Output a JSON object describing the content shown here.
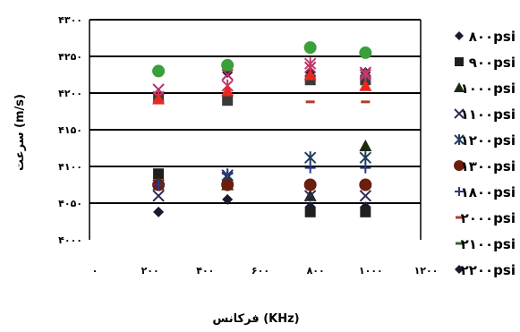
{
  "chart_data": {
    "type": "scatter",
    "xlabel": "فرکانس (KHz)",
    "ylabel": "سرعت (m/s)",
    "xlim": [
      0,
      1200
    ],
    "ylim": [
      4000,
      4300
    ],
    "x_ticks": [
      "۰",
      "۲۰۰",
      "۴۰۰",
      "۶۰۰",
      "۸۰۰",
      "۱۰۰۰",
      "۱۲۰۰"
    ],
    "y_ticks": [
      "۴۰۰۰",
      "۴۰۵۰",
      "۴۱۰۰",
      "۴۱۵۰",
      "۴۲۰۰",
      "۴۲۵۰",
      "۴۳۰۰"
    ],
    "grid": "horizontal",
    "legend_position": "right",
    "series": [
      {
        "name": "۸۰۰psi",
        "marker": "diamond",
        "color": "#1a1a2e",
        "x": [
          250,
          500,
          800,
          1000
        ],
        "y": [
          4038,
          4055,
          4045,
          4045
        ]
      },
      {
        "name": "۹۰۰psi",
        "marker": "square",
        "color": "#1f1f1f",
        "x": [
          250,
          500,
          800,
          1000
        ],
        "y": [
          4090,
          4075,
          4038,
          4038
        ]
      },
      {
        "name": "۱۰۰۰psi",
        "marker": "triangle",
        "color": "#1c2a12",
        "x": [
          250,
          500,
          800,
          1000
        ],
        "y": [
          4080,
          4075,
          4060,
          4128
        ]
      },
      {
        "name": "۱۱۰۰psi",
        "marker": "x",
        "color": "#2b2b55",
        "x": [
          250,
          500,
          800,
          1000
        ],
        "y": [
          4060,
          4085,
          4060,
          4060
        ]
      },
      {
        "name": "۱۲۰۰psi",
        "marker": "asterisk",
        "color": "#1e3d5c",
        "x": [
          250,
          500,
          800,
          1000
        ],
        "y": [
          4075,
          4088,
          4112,
          4112
        ]
      },
      {
        "name": "۱۳۰۰psi",
        "marker": "circle",
        "color": "#6b1e0c",
        "x": [
          250,
          500,
          800,
          1000
        ],
        "y": [
          4075,
          4075,
          4075,
          4075
        ]
      },
      {
        "name": "۱۸۰۰psi",
        "marker": "plus",
        "color": "#2a3a8a",
        "x": [
          250,
          500,
          800,
          1000
        ],
        "y": [
          4075,
          4090,
          4098,
          4098
        ]
      },
      {
        "name": "۲۰۰۰psi",
        "marker": "dash",
        "color": "#b33a2b",
        "x": [
          250,
          500,
          800,
          1000
        ],
        "y": [
          4195,
          4195,
          4188,
          4188
        ]
      },
      {
        "name": "۲۱۰۰psi",
        "marker": "dash",
        "color": "#2f6b1e",
        "x": [
          250,
          500,
          800,
          1000
        ],
        "y": [
          4195,
          4195,
          4220,
          4215
        ]
      },
      {
        "name": "۲۲۰۰psi",
        "marker": "diamond",
        "color": "#1a1a2e",
        "x": [
          250,
          500,
          800,
          1000
        ],
        "y": [
          4195,
          4228,
          4228,
          4228
        ]
      },
      {
        "name": "",
        "marker": "square",
        "color": "#3a3a3a",
        "x": [
          250,
          500,
          800,
          1000
        ],
        "y": [
          4192,
          4190,
          4218,
          4218
        ]
      },
      {
        "name": "",
        "marker": "x",
        "color": "#b0306a",
        "x": [
          250,
          500,
          800,
          1000
        ],
        "y": [
          4205,
          4225,
          4235,
          4228
        ]
      },
      {
        "name": "",
        "marker": "asterisk",
        "color": "#c23b6b",
        "x": [
          250,
          500,
          800,
          1000
        ],
        "y": [
          4195,
          4210,
          4240,
          4225
        ]
      },
      {
        "name": "",
        "marker": "triangle",
        "color": "#e8281e",
        "x": [
          250,
          500,
          800,
          1000
        ],
        "y": [
          4192,
          4203,
          4225,
          4210
        ]
      },
      {
        "name": "",
        "marker": "circle",
        "color": "#3aa03a",
        "x": [
          250,
          500,
          800,
          1000
        ],
        "y": [
          4230,
          4238,
          4262,
          4255
        ]
      }
    ]
  }
}
